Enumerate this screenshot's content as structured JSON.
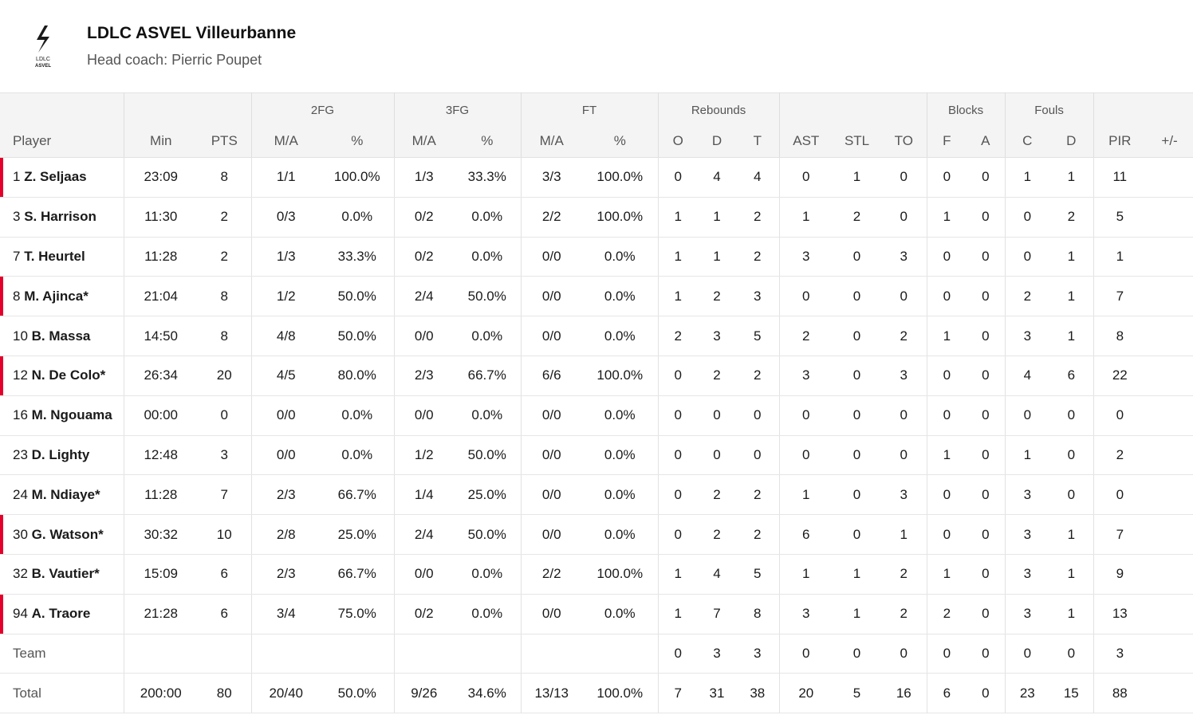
{
  "header": {
    "team_name": "LDLC ASVEL Villeurbanne",
    "coach": "Head coach: Pierric Poupet",
    "logo_text_1": "LDLC",
    "logo_text_2": "ASVEL",
    "accent": "#e4002b"
  },
  "groups": {
    "fg2": "2FG",
    "fg3": "3FG",
    "ft": "FT",
    "reb": "Rebounds",
    "blk": "Blocks",
    "fouls": "Fouls"
  },
  "columns": [
    "Player",
    "Min",
    "PTS",
    "M/A",
    "%",
    "M/A",
    "%",
    "M/A",
    "%",
    "O",
    "D",
    "T",
    "AST",
    "STL",
    "TO",
    "F",
    "A",
    "C",
    "D",
    "PIR",
    "+/-"
  ],
  "rows": [
    {
      "num": "1",
      "name": "Z. Seljaas",
      "starter": true,
      "cells": [
        "23:09",
        "8",
        "1/1",
        "100.0%",
        "1/3",
        "33.3%",
        "3/3",
        "100.0%",
        "0",
        "4",
        "4",
        "0",
        "1",
        "0",
        "0",
        "0",
        "1",
        "1",
        "11",
        ""
      ]
    },
    {
      "num": "3",
      "name": "S. Harrison",
      "starter": false,
      "cells": [
        "11:30",
        "2",
        "0/3",
        "0.0%",
        "0/2",
        "0.0%",
        "2/2",
        "100.0%",
        "1",
        "1",
        "2",
        "1",
        "2",
        "0",
        "1",
        "0",
        "0",
        "2",
        "5",
        ""
      ]
    },
    {
      "num": "7",
      "name": "T. Heurtel",
      "starter": false,
      "cells": [
        "11:28",
        "2",
        "1/3",
        "33.3%",
        "0/2",
        "0.0%",
        "0/0",
        "0.0%",
        "1",
        "1",
        "2",
        "3",
        "0",
        "3",
        "0",
        "0",
        "0",
        "1",
        "1",
        ""
      ]
    },
    {
      "num": "8",
      "name": "M. Ajinca*",
      "starter": true,
      "cells": [
        "21:04",
        "8",
        "1/2",
        "50.0%",
        "2/4",
        "50.0%",
        "0/0",
        "0.0%",
        "1",
        "2",
        "3",
        "0",
        "0",
        "0",
        "0",
        "0",
        "2",
        "1",
        "7",
        ""
      ]
    },
    {
      "num": "10",
      "name": "B. Massa",
      "starter": false,
      "cells": [
        "14:50",
        "8",
        "4/8",
        "50.0%",
        "0/0",
        "0.0%",
        "0/0",
        "0.0%",
        "2",
        "3",
        "5",
        "2",
        "0",
        "2",
        "1",
        "0",
        "3",
        "1",
        "8",
        ""
      ]
    },
    {
      "num": "12",
      "name": "N. De Colo*",
      "starter": true,
      "cells": [
        "26:34",
        "20",
        "4/5",
        "80.0%",
        "2/3",
        "66.7%",
        "6/6",
        "100.0%",
        "0",
        "2",
        "2",
        "3",
        "0",
        "3",
        "0",
        "0",
        "4",
        "6",
        "22",
        ""
      ]
    },
    {
      "num": "16",
      "name": "M. Ngouama",
      "starter": false,
      "cells": [
        "00:00",
        "0",
        "0/0",
        "0.0%",
        "0/0",
        "0.0%",
        "0/0",
        "0.0%",
        "0",
        "0",
        "0",
        "0",
        "0",
        "0",
        "0",
        "0",
        "0",
        "0",
        "0",
        ""
      ]
    },
    {
      "num": "23",
      "name": "D. Lighty",
      "starter": false,
      "cells": [
        "12:48",
        "3",
        "0/0",
        "0.0%",
        "1/2",
        "50.0%",
        "0/0",
        "0.0%",
        "0",
        "0",
        "0",
        "0",
        "0",
        "0",
        "1",
        "0",
        "1",
        "0",
        "2",
        ""
      ]
    },
    {
      "num": "24",
      "name": "M. Ndiaye*",
      "starter": false,
      "cells": [
        "11:28",
        "7",
        "2/3",
        "66.7%",
        "1/4",
        "25.0%",
        "0/0",
        "0.0%",
        "0",
        "2",
        "2",
        "1",
        "0",
        "3",
        "0",
        "0",
        "3",
        "0",
        "0",
        ""
      ]
    },
    {
      "num": "30",
      "name": "G. Watson*",
      "starter": true,
      "cells": [
        "30:32",
        "10",
        "2/8",
        "25.0%",
        "2/4",
        "50.0%",
        "0/0",
        "0.0%",
        "0",
        "2",
        "2",
        "6",
        "0",
        "1",
        "0",
        "0",
        "3",
        "1",
        "7",
        ""
      ]
    },
    {
      "num": "32",
      "name": "B. Vautier*",
      "starter": false,
      "cells": [
        "15:09",
        "6",
        "2/3",
        "66.7%",
        "0/0",
        "0.0%",
        "2/2",
        "100.0%",
        "1",
        "4",
        "5",
        "1",
        "1",
        "2",
        "1",
        "0",
        "3",
        "1",
        "9",
        ""
      ]
    },
    {
      "num": "94",
      "name": "A. Traore",
      "starter": true,
      "cells": [
        "21:28",
        "6",
        "3/4",
        "75.0%",
        "0/2",
        "0.0%",
        "0/0",
        "0.0%",
        "1",
        "7",
        "8",
        "3",
        "1",
        "2",
        "2",
        "0",
        "3",
        "1",
        "13",
        ""
      ]
    }
  ],
  "team_row": {
    "label": "Team",
    "cells": [
      "",
      "",
      "",
      "",
      "",
      "",
      "",
      "",
      "0",
      "3",
      "3",
      "0",
      "0",
      "0",
      "0",
      "0",
      "0",
      "0",
      "3",
      ""
    ]
  },
  "total_row": {
    "label": "Total",
    "cells": [
      "200:00",
      "80",
      "20/40",
      "50.0%",
      "9/26",
      "34.6%",
      "13/13",
      "100.0%",
      "7",
      "31",
      "38",
      "20",
      "5",
      "16",
      "6",
      "0",
      "23",
      "15",
      "88",
      ""
    ]
  }
}
